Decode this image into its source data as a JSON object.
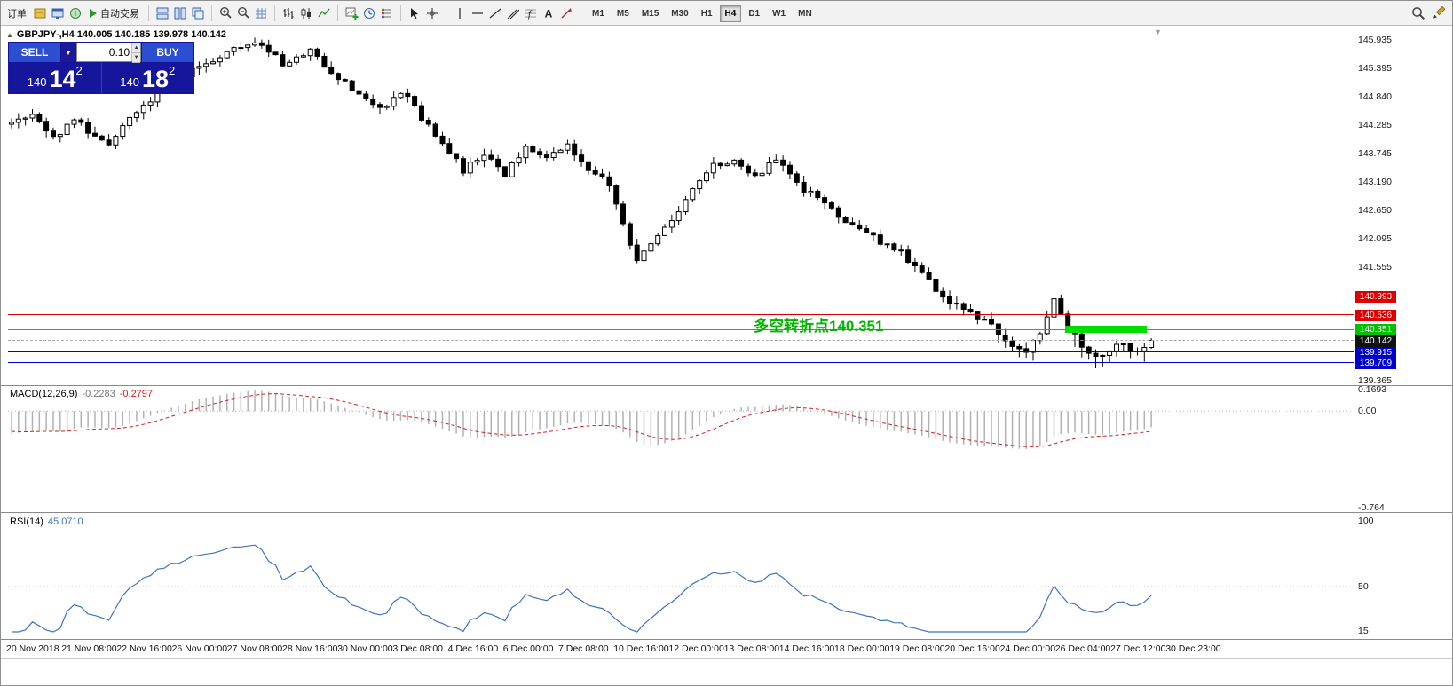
{
  "toolbar": {
    "order_label": "订单",
    "autotrade_label": "自动交易",
    "timeframes": [
      "M1",
      "M5",
      "M15",
      "M30",
      "H1",
      "H4",
      "D1",
      "W1",
      "MN"
    ],
    "active_timeframe": "H4"
  },
  "chart": {
    "symbol_info": "GBPJPY-,H4 140.005 140.185 139.978 140.142",
    "one_click": {
      "sell_label": "SELL",
      "buy_label": "BUY",
      "volume": "0.10",
      "sell_price": {
        "base": "140",
        "pips": "14",
        "sup": "2"
      },
      "buy_price": {
        "base": "140",
        "pips": "18",
        "sup": "2"
      }
    },
    "annotation": {
      "text": "多空转折点140.351",
      "color": "#00b400"
    },
    "axis_labels": [
      "145.935",
      "145.395",
      "144.840",
      "144.285",
      "143.745",
      "143.190",
      "142.650",
      "142.095",
      "141.555",
      "139.365"
    ],
    "price_lines": [
      {
        "value": 140.993,
        "label": "140.993",
        "line_color": "#dd0000",
        "line_style": "solid",
        "badge_bg": "#dd0000"
      },
      {
        "value": 140.636,
        "label": "140.636",
        "line_color": "#dd0000",
        "line_style": "solid",
        "badge_bg": "#dd0000"
      },
      {
        "value": 140.351,
        "label": "140.351",
        "line_color": "#00cc00",
        "line_style": "solid",
        "badge_bg": "#00c000"
      },
      {
        "value": 140.142,
        "label": "140.142",
        "line_color": "#aaaaaa",
        "line_style": "dashed",
        "badge_bg": "#111111"
      },
      {
        "value": 139.915,
        "label": "139.915",
        "line_color": "#0000dd",
        "line_style": "solid",
        "badge_bg": "#0000cc"
      },
      {
        "value": 139.709,
        "label": "139.709",
        "line_color": "#0000dd",
        "line_style": "solid",
        "badge_bg": "#0000cc"
      }
    ],
    "green_segment": {
      "from_candle": 152,
      "to_candle": 163,
      "price": 140.351,
      "color": "#00dd00"
    }
  },
  "macd": {
    "label": "MACD(12,26,9)",
    "value_main": "-0.2283",
    "value_signal": "-0.2797",
    "axis_labels": [
      "0.1693",
      "0.00",
      "-0.764"
    ]
  },
  "rsi": {
    "label": "RSI(14)",
    "value": "45.0710",
    "axis_labels": [
      "100",
      "50",
      "15"
    ]
  },
  "time_axis": {
    "labels": [
      "20 Nov 2018",
      "21 Nov 08:00",
      "22 Nov 16:00",
      "26 Nov 00:00",
      "27 Nov 08:00",
      "28 Nov 16:00",
      "30 Nov 00:00",
      "3 Dec 08:00",
      "4 Dec 16:00",
      "6 Dec 00:00",
      "7 Dec 08:00",
      "10 Dec 16:00",
      "12 Dec 00:00",
      "13 Dec 08:00",
      "14 Dec 16:00",
      "18 Dec 00:00",
      "19 Dec 08:00",
      "20 Dec 16:00",
      "24 Dec 00:00",
      "26 Dec 04:00",
      "27 Dec 12:00",
      "30 Dec 23:00"
    ]
  },
  "chart_data": {
    "type": "candlestick",
    "symbol": "GBPJPY-",
    "timeframe": "H4",
    "last_candle": {
      "open": 140.005,
      "high": 140.185,
      "low": 139.978,
      "close": 140.142
    },
    "visible_price_range": [
      139.365,
      145.935
    ],
    "candle_count": 165,
    "price_waypoints": [
      [
        0,
        144.3
      ],
      [
        3,
        144.55
      ],
      [
        6,
        144.05
      ],
      [
        9,
        144.4
      ],
      [
        12,
        144.1
      ],
      [
        14,
        143.95
      ],
      [
        17,
        144.5
      ],
      [
        21,
        144.9
      ],
      [
        25,
        145.25
      ],
      [
        29,
        145.55
      ],
      [
        33,
        145.8
      ],
      [
        36,
        145.88
      ],
      [
        39,
        145.45
      ],
      [
        43,
        145.72
      ],
      [
        46,
        145.35
      ],
      [
        50,
        144.85
      ],
      [
        53,
        144.6
      ],
      [
        56,
        144.95
      ],
      [
        59,
        144.45
      ],
      [
        62,
        143.95
      ],
      [
        65,
        143.4
      ],
      [
        68,
        143.75
      ],
      [
        71,
        143.35
      ],
      [
        74,
        143.85
      ],
      [
        77,
        143.6
      ],
      [
        80,
        143.95
      ],
      [
        83,
        143.45
      ],
      [
        86,
        143.15
      ],
      [
        88,
        142.35
      ],
      [
        90,
        141.7
      ],
      [
        92,
        142.05
      ],
      [
        95,
        142.45
      ],
      [
        98,
        143.05
      ],
      [
        101,
        143.5
      ],
      [
        104,
        143.65
      ],
      [
        107,
        143.3
      ],
      [
        110,
        143.6
      ],
      [
        113,
        143.15
      ],
      [
        116,
        142.85
      ],
      [
        119,
        142.55
      ],
      [
        122,
        142.3
      ],
      [
        125,
        142.05
      ],
      [
        128,
        141.85
      ],
      [
        131,
        141.45
      ],
      [
        134,
        141.0
      ],
      [
        137,
        140.75
      ],
      [
        140,
        140.5
      ],
      [
        143,
        140.2
      ],
      [
        146,
        139.85
      ],
      [
        148,
        140.3
      ],
      [
        150,
        140.95
      ],
      [
        152,
        140.35
      ],
      [
        154,
        140.05
      ],
      [
        156,
        139.78
      ],
      [
        158,
        140.0
      ],
      [
        160,
        140.1
      ],
      [
        162,
        139.9
      ],
      [
        164,
        140.142
      ]
    ],
    "indicators": [
      {
        "name": "MACD",
        "params": [
          12,
          26,
          9
        ],
        "values": [
          -0.2283,
          -0.2797
        ]
      },
      {
        "name": "RSI",
        "params": [
          14
        ],
        "value": 45.071
      }
    ],
    "horizontal_levels": [
      140.993,
      140.636,
      140.351,
      140.142,
      139.915,
      139.709
    ]
  }
}
